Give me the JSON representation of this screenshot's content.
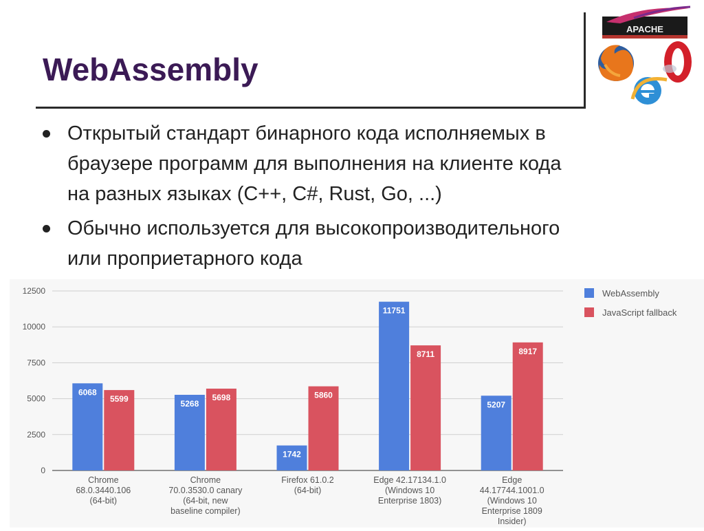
{
  "slide": {
    "title": "WebAssembly",
    "bullets": [
      {
        "lines": [
          "Открытый стандарт бинарного кода исполняемых в",
          "браузере программ для выполнения на клиенте кода",
          "на разных языках (C++, C#, Rust, Go, ...)"
        ]
      },
      {
        "lines": [
          "Обычно используется для высокопроизводительного",
          "или проприетарного кода"
        ]
      }
    ],
    "logo_text": "APACHE"
  },
  "chart_data": {
    "type": "bar",
    "categories": [
      [
        "Chrome",
        "68.0.3440.106",
        "(64-bit)"
      ],
      [
        "Chrome",
        "70.0.3530.0 canary",
        "(64-bit, new",
        "baseline compiler)"
      ],
      [
        "Firefox 61.0.2",
        "(64-bit)"
      ],
      [
        "Edge 42.17134.1.0",
        "(Windows 10",
        "Enterprise 1803)"
      ],
      [
        "Edge",
        "44.17744.1001.0",
        "(Windows 10",
        "Enterprise 1809",
        "Insider)"
      ]
    ],
    "series": [
      {
        "name": "WebAssembly",
        "color": "#4f7fdc",
        "values": [
          6068,
          5268,
          1742,
          11751,
          5207
        ]
      },
      {
        "name": "JavaScript fallback",
        "color": "#d9535f",
        "values": [
          5599,
          5698,
          5860,
          8711,
          8917
        ]
      }
    ],
    "yticks": [
      "0",
      "2500",
      "5000",
      "7500",
      "10000",
      "12500"
    ],
    "ylim": [
      0,
      12500
    ],
    "grid": true,
    "legend": "top-right",
    "data_labels": true
  }
}
